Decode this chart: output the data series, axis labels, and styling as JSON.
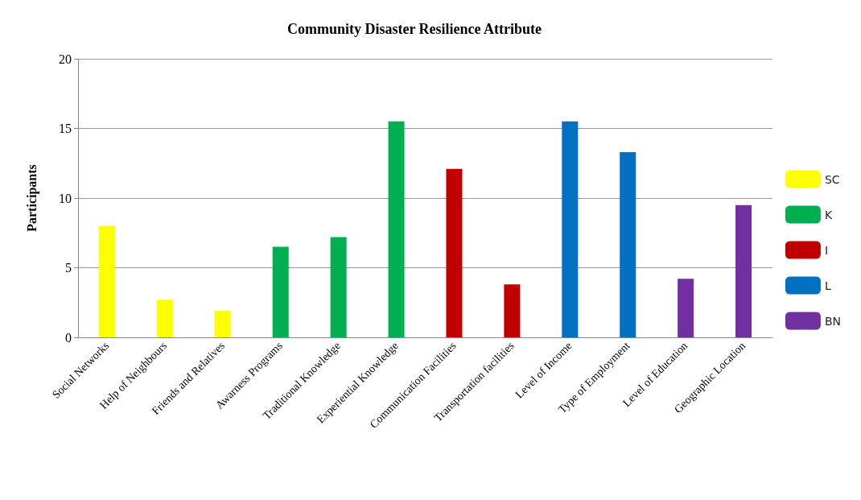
{
  "chart_data": {
    "type": "bar",
    "title": "Community Disaster Resilience Attribute",
    "ylabel": "Participants",
    "categories": [
      "Social Networks",
      "Help of Neighbours",
      "Friends and Relatives",
      "Awarness Programs",
      "Traditional Knowledge",
      "Experiential Knowledge",
      "Communication Facilities",
      "Transportation facilities",
      "Level of Income",
      "Type of Employment",
      "Level of Education",
      "Geographic Location"
    ],
    "series": [
      {
        "name": "SC",
        "color": "#ffff00",
        "values": [
          8,
          2.7,
          1.9,
          null,
          null,
          null,
          null,
          null,
          null,
          null,
          null,
          null
        ]
      },
      {
        "name": "K",
        "color": "#00b050",
        "values": [
          null,
          null,
          null,
          6.5,
          7.2,
          15.5,
          null,
          null,
          null,
          null,
          null,
          null
        ]
      },
      {
        "name": "I",
        "color": "#c00000",
        "values": [
          null,
          null,
          null,
          null,
          null,
          null,
          12.1,
          3.8,
          null,
          null,
          null,
          null
        ]
      },
      {
        "name": "L",
        "color": "#0070c0",
        "values": [
          null,
          null,
          null,
          null,
          null,
          null,
          null,
          null,
          15.5,
          13.3,
          null,
          null
        ]
      },
      {
        "name": "BN",
        "color": "#7030a0",
        "values": [
          null,
          null,
          null,
          null,
          null,
          null,
          null,
          null,
          null,
          null,
          4.2,
          9.5
        ]
      }
    ],
    "ylim": [
      0,
      20
    ],
    "yticks": [
      0,
      5,
      10,
      15,
      20
    ],
    "grid": "y",
    "legend": "right"
  }
}
